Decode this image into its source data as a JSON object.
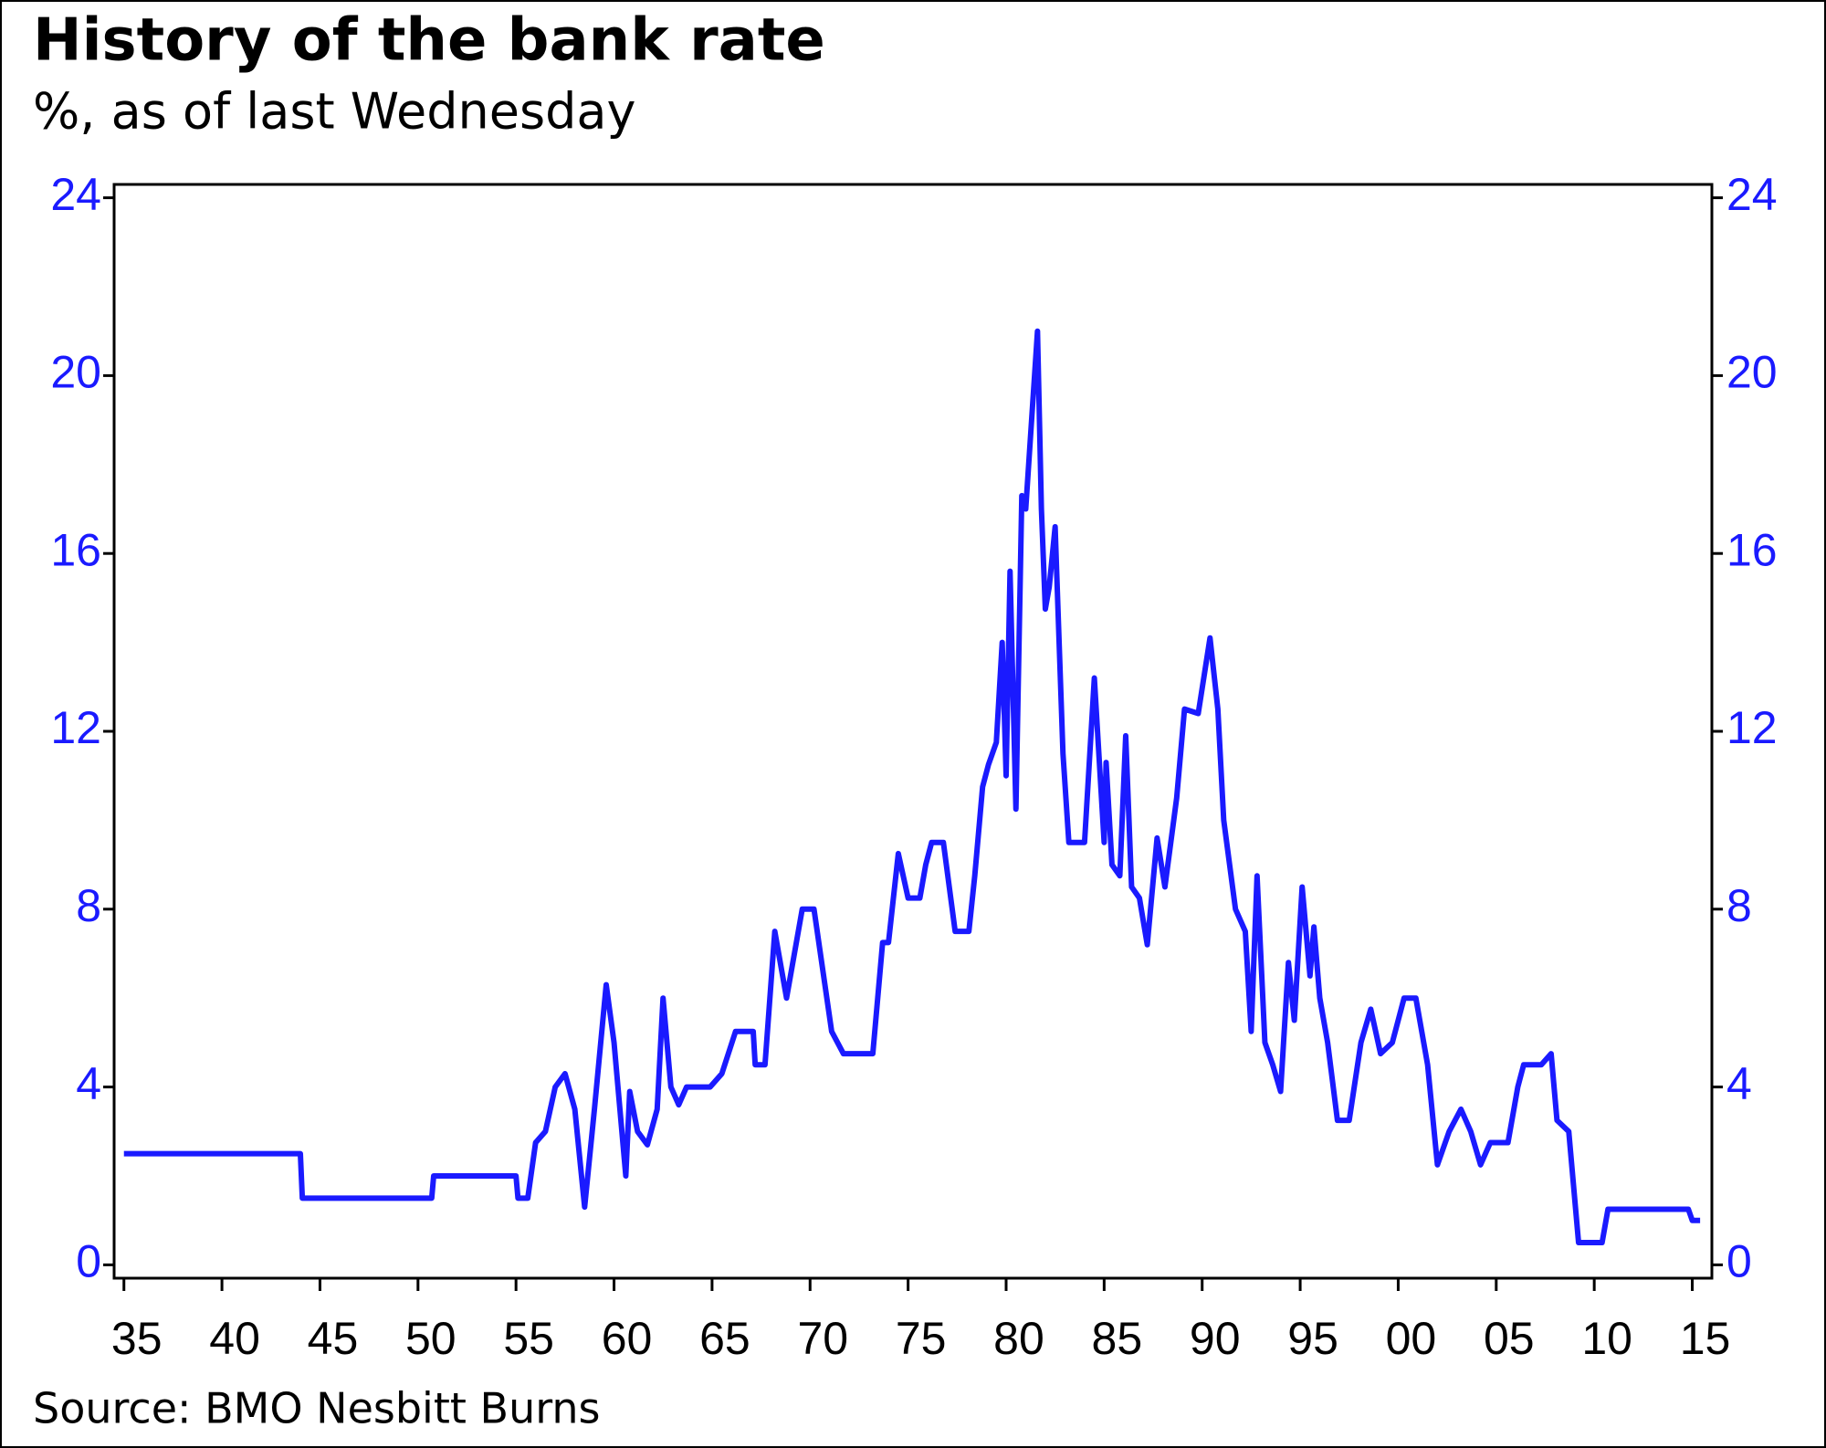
{
  "chart_data": {
    "type": "line",
    "title": "History of the bank rate",
    "subtitle": "%, as of last Wednesday",
    "source": "Source: BMO Nesbitt Burns",
    "xlim": [
      1934.5,
      2016
    ],
    "ylim": [
      -0.3,
      24.3
    ],
    "y2lim": [
      -0.3,
      24.3
    ],
    "xticks": [
      {
        "value": 1935,
        "label": "35"
      },
      {
        "value": 1940,
        "label": "40"
      },
      {
        "value": 1945,
        "label": "45"
      },
      {
        "value": 1950,
        "label": "50"
      },
      {
        "value": 1955,
        "label": "55"
      },
      {
        "value": 1960,
        "label": "60"
      },
      {
        "value": 1965,
        "label": "65"
      },
      {
        "value": 1970,
        "label": "70"
      },
      {
        "value": 1975,
        "label": "75"
      },
      {
        "value": 1980,
        "label": "80"
      },
      {
        "value": 1985,
        "label": "85"
      },
      {
        "value": 1990,
        "label": "90"
      },
      {
        "value": 1995,
        "label": "95"
      },
      {
        "value": 2000,
        "label": "00"
      },
      {
        "value": 2005,
        "label": "05"
      },
      {
        "value": 2010,
        "label": "10"
      },
      {
        "value": 2015,
        "label": "15"
      }
    ],
    "yticks": [
      0,
      4,
      8,
      12,
      16,
      20,
      24
    ],
    "y2ticks": [
      0,
      4,
      8,
      12,
      16,
      20,
      24
    ],
    "tick_color": "#1a1aff",
    "grid": false,
    "x": [
      1935,
      1944.0,
      1944.1,
      1950.7,
      1950.8,
      1955.0,
      1955.1,
      1955.6,
      1956.0,
      1956.5,
      1957.0,
      1957.5,
      1958.0,
      1958.5,
      1959.0,
      1959.6,
      1960.0,
      1960.3,
      1960.6,
      1960.8,
      1961.2,
      1961.7,
      1962.2,
      1962.5,
      1962.9,
      1963.3,
      1963.7,
      1964.9,
      1965.5,
      1966.2,
      1967.1,
      1967.2,
      1967.7,
      1968.2,
      1968.8,
      1969.6,
      1970.2,
      1971.1,
      1971.7,
      1973.2,
      1973.7,
      1974.0,
      1974.5,
      1975.0,
      1975.6,
      1975.9,
      1976.2,
      1976.8,
      1977.4,
      1978.1,
      1978.4,
      1978.8,
      1979.1,
      1979.5,
      1979.8,
      1980.0,
      1980.2,
      1980.5,
      1980.8,
      1981.0,
      1981.3,
      1981.6,
      1981.8,
      1982.0,
      1982.2,
      1982.5,
      1982.9,
      1983.2,
      1984.0,
      1984.5,
      1985.0,
      1985.1,
      1985.4,
      1985.8,
      1986.1,
      1986.4,
      1986.8,
      1987.2,
      1987.7,
      1988.1,
      1988.4,
      1988.7,
      1989.1,
      1989.8,
      1990.4,
      1990.8,
      1991.1,
      1991.7,
      1992.2,
      1992.5,
      1992.8,
      1993.2,
      1993.6,
      1994.0,
      1994.4,
      1994.7,
      1995.1,
      1995.5,
      1995.7,
      1996.0,
      1996.4,
      1996.9,
      1997.5,
      1998.1,
      1998.6,
      1999.1,
      1999.7,
      2000.3,
      2000.9,
      2001.5,
      2002.0,
      2002.6,
      2003.2,
      2003.7,
      2004.2,
      2004.7,
      2005.6,
      2006.1,
      2006.4,
      2007.3,
      2007.8,
      2008.1,
      2008.7,
      2009.2,
      2010.4,
      2010.7,
      2014.8,
      2015.0,
      2015.4
    ],
    "series": [
      {
        "name": "Bank rate",
        "color": "#1a1aff",
        "values": [
          2.5,
          2.5,
          1.5,
          1.5,
          2.0,
          2.0,
          1.5,
          1.5,
          2.75,
          3.0,
          4.0,
          4.3,
          3.5,
          1.3,
          3.5,
          6.3,
          5.0,
          3.5,
          2.0,
          3.9,
          3.0,
          2.7,
          3.5,
          6.0,
          4.0,
          3.6,
          4.0,
          4.0,
          4.3,
          5.25,
          5.25,
          4.5,
          4.5,
          7.5,
          6.0,
          8.0,
          8.0,
          5.25,
          4.75,
          4.75,
          7.25,
          7.25,
          9.25,
          8.25,
          8.25,
          9.0,
          9.5,
          9.5,
          7.5,
          7.5,
          8.75,
          10.75,
          11.25,
          11.75,
          14.0,
          11.0,
          15.6,
          10.25,
          17.3,
          17.0,
          19.0,
          21.0,
          17.0,
          14.75,
          15.25,
          16.6,
          11.5,
          9.5,
          9.5,
          13.2,
          9.5,
          11.3,
          9.0,
          8.75,
          11.9,
          8.5,
          8.25,
          7.2,
          9.6,
          8.5,
          9.5,
          10.5,
          12.5,
          12.4,
          14.1,
          12.5,
          10.0,
          8.0,
          7.5,
          5.25,
          8.75,
          5.0,
          4.5,
          3.9,
          6.8,
          5.5,
          8.5,
          6.5,
          7.6,
          6.0,
          5.0,
          3.25,
          3.25,
          5.0,
          5.75,
          4.75,
          5.0,
          6.0,
          6.0,
          4.5,
          2.25,
          3.0,
          3.5,
          3.0,
          2.25,
          2.75,
          2.75,
          4.0,
          4.5,
          4.5,
          4.75,
          3.25,
          3.0,
          0.5,
          0.5,
          1.25,
          1.25,
          1.0,
          1.0
        ]
      }
    ]
  }
}
